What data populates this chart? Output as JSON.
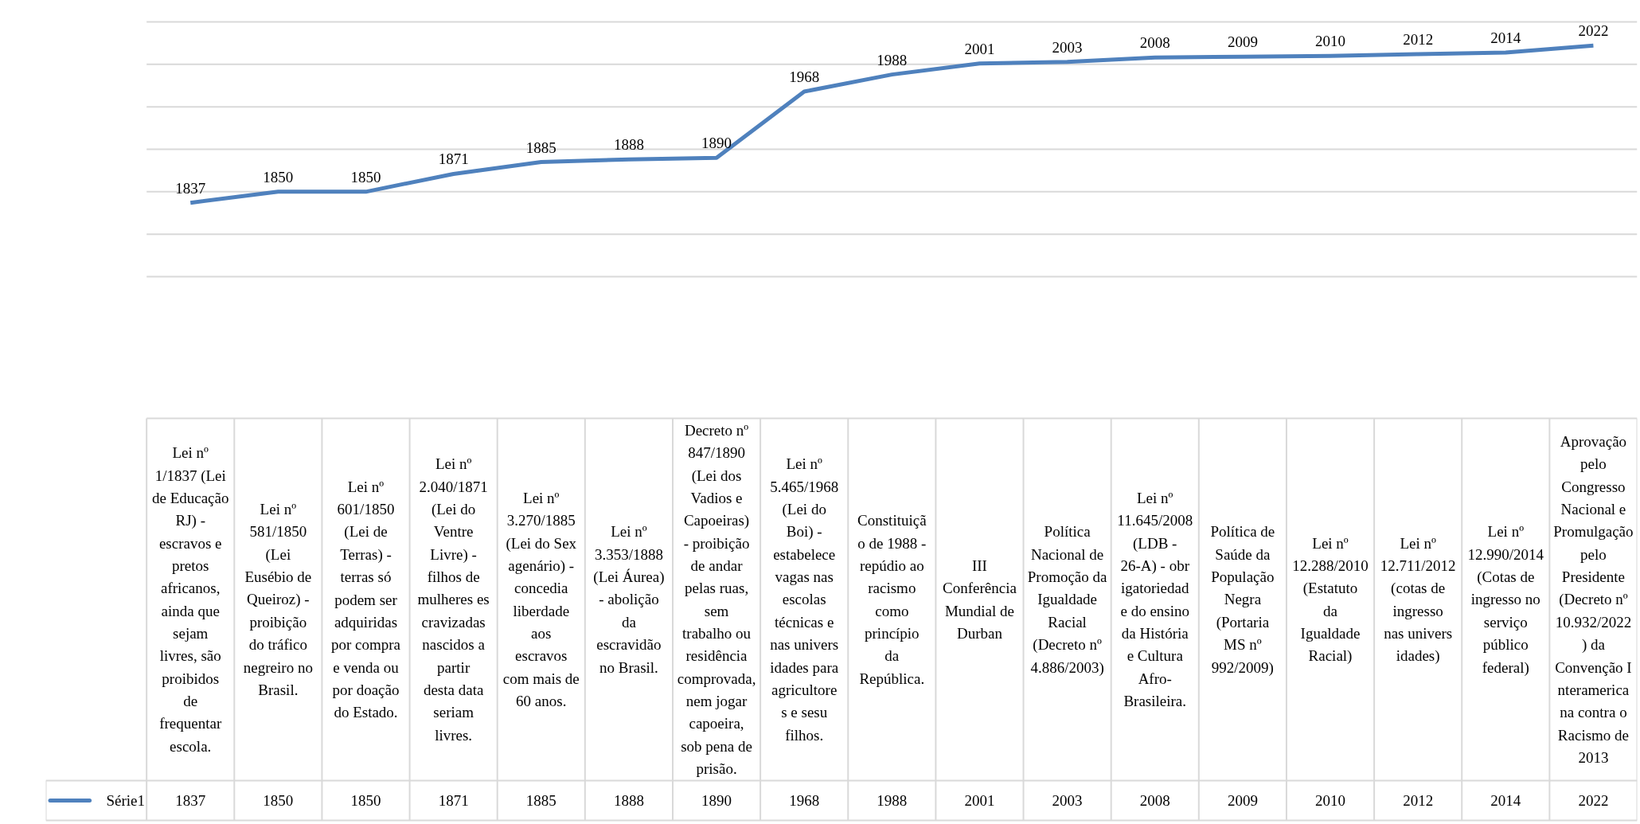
{
  "chart_data": {
    "type": "line",
    "categories": [
      "Lei nº 1/1837 (Lei de Educação RJ) - escravos e pretos africanos, ainda que sejam livres, são proibidos de frequentar escola.",
      "Lei nº 581/1850 (Lei Eusébio de Queiroz) - proibição do tráfico negreiro no Brasil.",
      "Lei nº 601/1850 (Lei de Terras) - terras só podem ser adquiridas por compra e venda ou por doação do Estado.",
      "Lei nº 2.040/1871 (Lei do Ventre Livre) - filhos de mulheres escravizadas nascidos a partir desta data seriam livres.",
      "Lei nº 3.270/1885 (Lei do Sexagenário) - concedia liberdade aos escravos com mais de 60 anos.",
      "Lei nº 3.353/1888 (Lei Áurea) - abolição da escravidão no Brasil.",
      "Decreto nº 847/1890 (Lei dos Vadios e Capoeiras) - proibição de andar pelas ruas, sem trabalho ou residência comprovada, nem jogar capoeira, sob pena de prisão.",
      "Lei nº 5.465/1968 (Lei do Boi) - estabelece vagas nas escolas técnicas e nas universidades para agricultores e sesu filhos.",
      "Constituição de 1988 - repúdio ao racismo como princípio da República.",
      "III Conferência Mundial de Durban",
      "Política Nacional de Promoção da Igualdade Racial (Decreto nº 4.886/2003)",
      "Lei nº 11.645/2008 (LDB - 26-A) - obrigatoriedade do ensino da História e Cultura Afro-Brasileira.",
      "Política de Saúde da População Negra (Portaria MS nº 992/2009)",
      "Lei nº 12.288/2010 (Estatuto da Igualdade Racial)",
      "Lei nº 12.711/2012 (cotas de ingresso nas universidades)",
      "Lei nº 12.990/2014 (Cotas de ingresso no serviço público federal)",
      "Aprovação pelo Congresso Nacional e Promulgação pelo Presidente (Decreto nº 10.932/2022) da Convenção Interamericana contra o Racismo de 2013"
    ],
    "series": [
      {
        "name": "Série1",
        "color": "#4f81bd",
        "values": [
          1837,
          1850,
          1850,
          1871,
          1885,
          1888,
          1890,
          1968,
          1988,
          2001,
          2003,
          2008,
          2009,
          2010,
          2012,
          2014,
          2022
        ],
        "value_labels": [
          "1837",
          "1850",
          "1850",
          "1871",
          "1885",
          "1888",
          "1890",
          "1968",
          "1988",
          "2001",
          "2003",
          "2008",
          "2009",
          "2010",
          "2012",
          "2014",
          "2022"
        ]
      }
    ],
    "ylim": [
      1750,
      2050
    ],
    "yticks": [
      {
        "value": 1750,
        "label": null
      },
      {
        "value": 1800,
        "label": null
      },
      {
        "value": 1850,
        "label": null
      },
      {
        "value": 1900,
        "label": null
      },
      {
        "value": 1950,
        "label": null
      },
      {
        "value": 2000,
        "label": null
      },
      {
        "value": 2050,
        "label": null
      }
    ],
    "grid": "y",
    "legend": "bottom",
    "data_labels": true,
    "line_style": "solid",
    "tick_labels": "x"
  }
}
